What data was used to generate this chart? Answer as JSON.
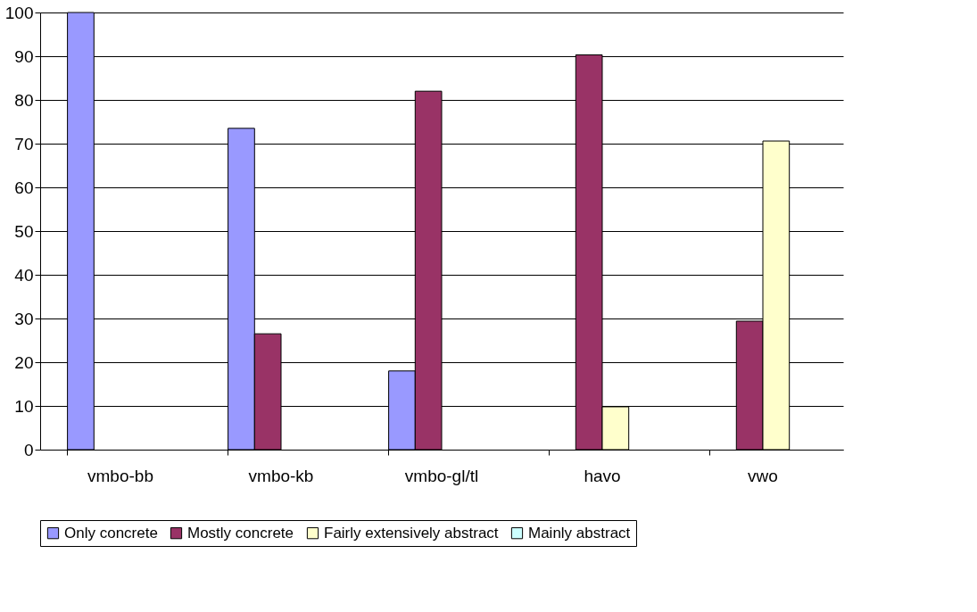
{
  "chart_data": {
    "type": "bar",
    "categories": [
      "vmbo-bb",
      "vmbo-kb",
      "vmbo-gl/tl",
      "havo",
      "vwo"
    ],
    "series": [
      {
        "name": "Only concrete",
        "color": "#9999ff",
        "values": [
          100,
          73.5,
          18,
          null,
          null
        ]
      },
      {
        "name": "Mostly concrete",
        "color": "#993366",
        "values": [
          null,
          26.5,
          82,
          90.3,
          29.4
        ]
      },
      {
        "name": "Fairly extensively abstract",
        "color": "#ffffcc",
        "values": [
          null,
          null,
          null,
          9.8,
          70.6
        ]
      },
      {
        "name": "Mainly abstract",
        "color": "#ccffff",
        "values": [
          null,
          null,
          null,
          null,
          null
        ]
      }
    ],
    "ylim": [
      0,
      100
    ],
    "yticks": [
      0,
      10,
      20,
      30,
      40,
      50,
      60,
      70,
      80,
      90,
      100
    ],
    "grid": "y",
    "legend": "bottom"
  }
}
